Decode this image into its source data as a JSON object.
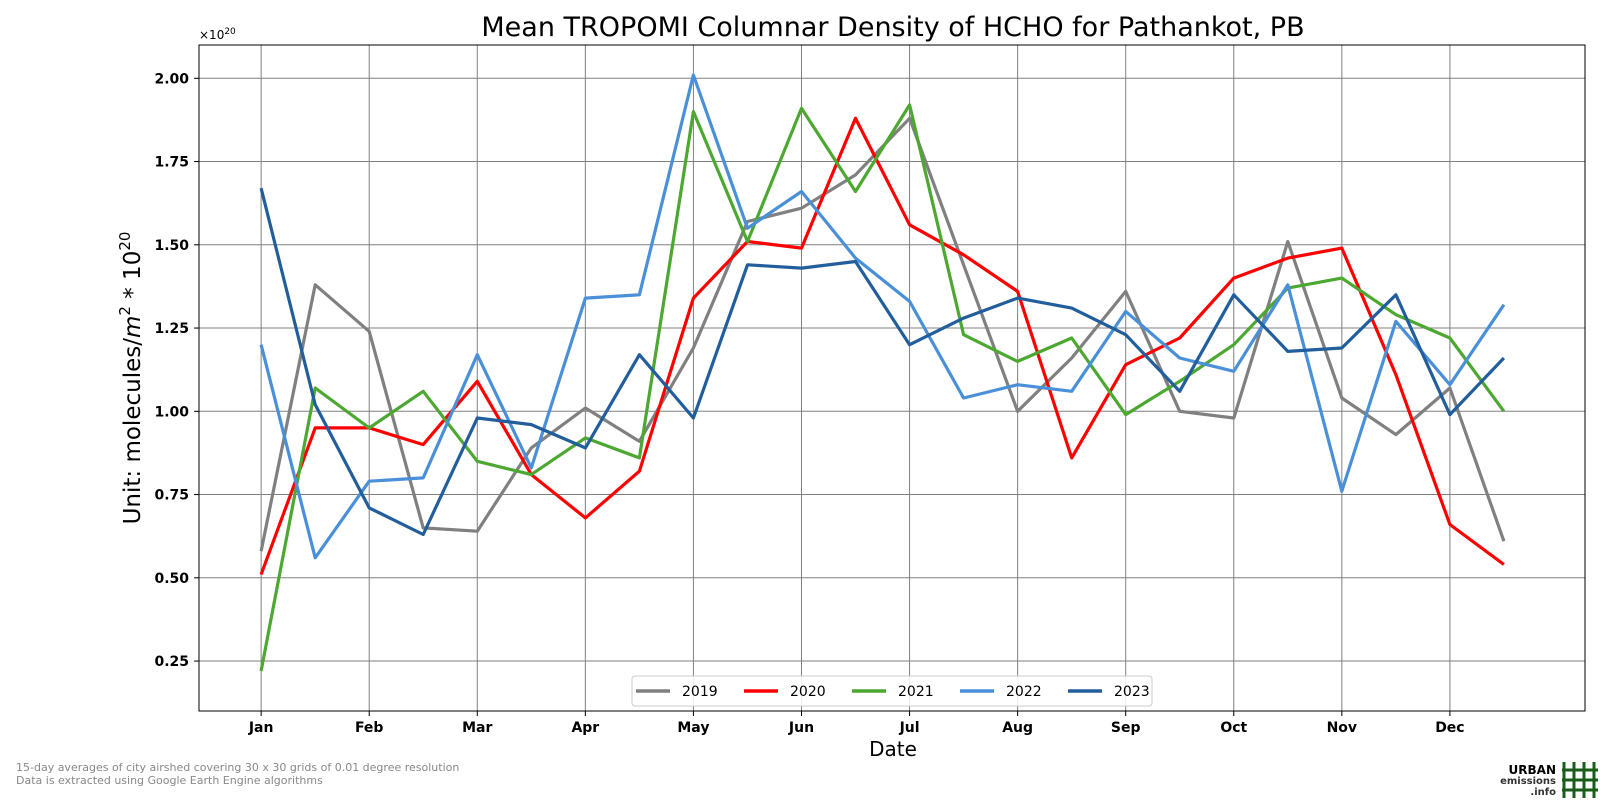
{
  "chart_data": {
    "type": "line",
    "title": "Mean TROPOMI Columnar Density of HCHO for Pathankot, PB",
    "xlabel": "Date",
    "ylabel_prefix": "Unit: molecules/",
    "ylabel_m": "m",
    "ylabel_m_exp": "2",
    "ylabel_mid": " * 10",
    "ylabel_exp": "20",
    "offset_base": "×10",
    "offset_exp": "20",
    "ylim": [
      0.1,
      2.1
    ],
    "yticks": [
      0.25,
      0.5,
      0.75,
      1.0,
      1.25,
      1.5,
      1.75,
      2.0
    ],
    "ytick_labels": [
      "0.25",
      "0.50",
      "0.75",
      "1.00",
      "1.25",
      "1.50",
      "1.75",
      "2.00"
    ],
    "x_tick_labels": [
      "Jan",
      "Feb",
      "Mar",
      "Apr",
      "May",
      "Jun",
      "Jul",
      "Aug",
      "Sep",
      "Oct",
      "Nov",
      "Dec"
    ],
    "x_period": "15-day averages, 24 per year",
    "grid": true,
    "legend_position": "bottom-center",
    "series": [
      {
        "name": "2019",
        "color": "#808080",
        "values": [
          0.58,
          1.38,
          1.24,
          0.65,
          0.64,
          0.89,
          1.01,
          0.91,
          1.19,
          1.57,
          1.61,
          1.71,
          1.88,
          1.44,
          1.0,
          1.16,
          1.36,
          1.0,
          0.98,
          1.51,
          1.04,
          0.93,
          1.07,
          0.61
        ]
      },
      {
        "name": "2020",
        "color": "#ff0000",
        "values": [
          0.51,
          0.95,
          0.95,
          0.9,
          1.09,
          0.81,
          0.68,
          0.82,
          1.34,
          1.51,
          1.49,
          1.88,
          1.56,
          1.47,
          1.36,
          0.86,
          1.14,
          1.22,
          1.4,
          1.46,
          1.49,
          1.11,
          0.66,
          0.54
        ]
      },
      {
        "name": "2021",
        "color": "#4da832",
        "values": [
          0.22,
          1.07,
          0.95,
          1.06,
          0.85,
          0.81,
          0.92,
          0.86,
          1.9,
          1.51,
          1.91,
          1.66,
          1.92,
          1.23,
          1.15,
          1.22,
          0.99,
          1.09,
          1.2,
          1.37,
          1.4,
          1.29,
          1.22,
          1.0
        ]
      },
      {
        "name": "2022",
        "color": "#4a90d9",
        "values": [
          1.2,
          0.56,
          0.79,
          0.8,
          1.17,
          0.83,
          1.34,
          1.35,
          2.01,
          1.55,
          1.66,
          1.46,
          1.33,
          1.04,
          1.08,
          1.06,
          1.3,
          1.16,
          1.12,
          1.38,
          0.76,
          1.27,
          1.08,
          1.32
        ]
      },
      {
        "name": "2023",
        "color": "#225e9c",
        "values": [
          1.67,
          1.02,
          0.71,
          0.63,
          0.98,
          0.96,
          0.89,
          1.17,
          0.98,
          1.44,
          1.43,
          1.45,
          1.2,
          1.28,
          1.34,
          1.31,
          1.23,
          1.06,
          1.35,
          1.18,
          1.19,
          1.35,
          0.99,
          1.16
        ]
      }
    ]
  },
  "footnotes": {
    "line1": "15-day averages of city airshed covering 30 x 30 grids of 0.01 degree resolution",
    "line2": "Data is extracted using Google Earth Engine algorithms"
  },
  "logo": {
    "line1": "URBAN",
    "line2": "emissions",
    "line3": ".info",
    "color": "#1a5c1a"
  }
}
